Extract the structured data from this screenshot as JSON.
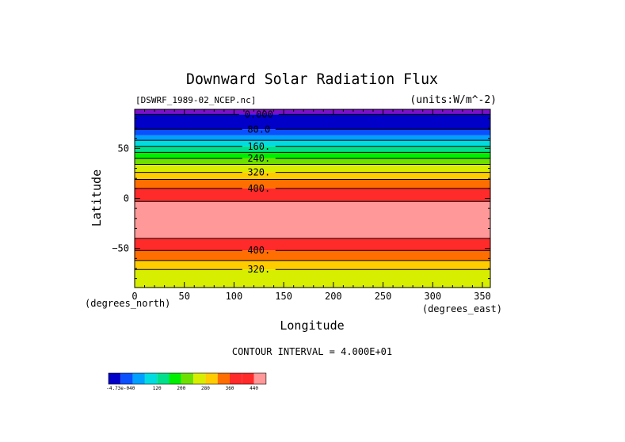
{
  "chart_data": {
    "type": "contour",
    "title": "Downward Solar Radiation Flux",
    "file_label": "[DSWRF_1989-02_NCEP.nc]",
    "units_label": "(units:W/m^-2)",
    "xlabel": "Longitude",
    "ylabel": "Latitude",
    "x_unit_label": "(degrees_east)",
    "y_unit_label": "(degrees_north)",
    "xlim": [
      0,
      358
    ],
    "ylim": [
      -89,
      89
    ],
    "x_ticks": [
      0,
      50,
      100,
      150,
      200,
      250,
      300,
      350
    ],
    "x_tick_labels": [
      "0",
      "50",
      "100",
      "150",
      "200",
      "250",
      "300",
      "350"
    ],
    "y_ticks": [
      50,
      0,
      -50
    ],
    "y_tick_labels": [
      "50",
      "0",
      "−50"
    ],
    "contour_interval_text": "CONTOUR INTERVAL = 4.000E+01",
    "contour_interval": 40,
    "bands": [
      {
        "lat_top": 89,
        "lat_bottom": 84,
        "color": "#7a10c8"
      },
      {
        "lat_top": 84,
        "lat_bottom": 69,
        "color": "#0000c8"
      },
      {
        "lat_top": 69,
        "lat_bottom": 63,
        "color": "#0a50ff"
      },
      {
        "lat_top": 63,
        "lat_bottom": 58,
        "color": "#00a0ff"
      },
      {
        "lat_top": 58,
        "lat_bottom": 52,
        "color": "#00dce0"
      },
      {
        "lat_top": 52,
        "lat_bottom": 46,
        "color": "#00e08c"
      },
      {
        "lat_top": 46,
        "lat_bottom": 40,
        "color": "#00ee00"
      },
      {
        "lat_top": 40,
        "lat_bottom": 34,
        "color": "#6ee000"
      },
      {
        "lat_top": 34,
        "lat_bottom": 26,
        "color": "#d8ee00"
      },
      {
        "lat_top": 26,
        "lat_bottom": 19,
        "color": "#ffcc00"
      },
      {
        "lat_top": 19,
        "lat_bottom": 10,
        "color": "#ff6e00"
      },
      {
        "lat_top": 10,
        "lat_bottom": -3,
        "color": "#ff2a2a"
      },
      {
        "lat_top": -3,
        "lat_bottom": -40,
        "color": "#ff9898"
      },
      {
        "lat_top": -40,
        "lat_bottom": -52,
        "color": "#ff2a2a"
      },
      {
        "lat_top": -52,
        "lat_bottom": -62,
        "color": "#ff6e00"
      },
      {
        "lat_top": -62,
        "lat_bottom": -71,
        "color": "#ffcc00"
      },
      {
        "lat_top": -71,
        "lat_bottom": -89,
        "color": "#d8ee00"
      }
    ],
    "contour_lines": [
      {
        "lat": 84,
        "label": "0.000"
      },
      {
        "lat": 69,
        "label": "80.0"
      },
      {
        "lat": 58,
        "label": ""
      },
      {
        "lat": 52,
        "label": "160."
      },
      {
        "lat": 46,
        "label": ""
      },
      {
        "lat": 40,
        "label": "240."
      },
      {
        "lat": 34,
        "label": ""
      },
      {
        "lat": 26,
        "label": "320."
      },
      {
        "lat": 19,
        "label": ""
      },
      {
        "lat": 10,
        "label": "400."
      },
      {
        "lat": -3,
        "label": ""
      },
      {
        "lat": -40,
        "label": ""
      },
      {
        "lat": -52,
        "label": "400."
      },
      {
        "lat": -62,
        "label": ""
      },
      {
        "lat": -71,
        "label": "320."
      }
    ],
    "colorbar": {
      "colors": [
        "#0000c8",
        "#0a50ff",
        "#00a0ff",
        "#00dce0",
        "#00e08c",
        "#00ee00",
        "#6ee000",
        "#d8ee00",
        "#ffcc00",
        "#ff6e00",
        "#ff2a2a",
        "#ff2a2a",
        "#ff9898"
      ],
      "labels": [
        {
          "index": 0,
          "text": "-4.73e-040"
        },
        {
          "index": 3,
          "text": "120"
        },
        {
          "index": 5,
          "text": "200"
        },
        {
          "index": 7,
          "text": "280"
        },
        {
          "index": 9,
          "text": "360"
        },
        {
          "index": 11,
          "text": "440"
        }
      ]
    }
  }
}
